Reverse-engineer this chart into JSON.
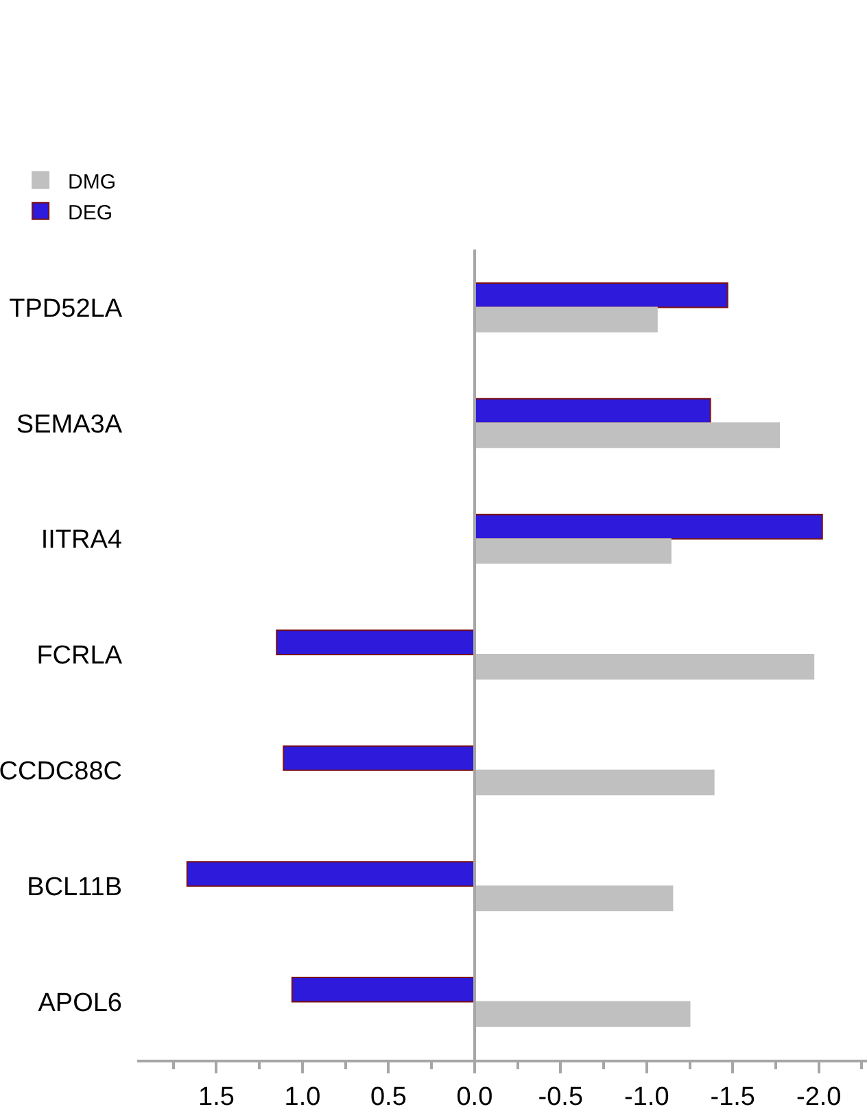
{
  "chart_data": {
    "type": "bar",
    "orientation": "horizontal",
    "categories": [
      "TPD52LA",
      "SEMA3A",
      "IITRA4",
      "FCRLA",
      "CCDC88C",
      "BCL11B",
      "APOL6"
    ],
    "series": [
      {
        "name": "DMG",
        "color": "#c0c0c0",
        "values": [
          -1.06,
          -1.77,
          -1.14,
          -1.97,
          -1.39,
          -1.15,
          -1.25
        ]
      },
      {
        "name": "DEG",
        "color": "#2e1adb",
        "values": [
          -1.47,
          -1.37,
          -2.02,
          1.15,
          1.11,
          1.67,
          1.06
        ]
      }
    ],
    "xlim": [
      1.96,
      -2.28
    ],
    "xticks": [
      {
        "value": 1.5,
        "label": "1.5"
      },
      {
        "value": 1,
        "label": "1.0"
      },
      {
        "value": 0.5,
        "label": "0.5"
      },
      {
        "value": 0,
        "label": "0.0"
      },
      {
        "value": -0.5,
        "label": "-0.5"
      },
      {
        "value": -1,
        "label": "-1.0"
      },
      {
        "value": -1.5,
        "label": "-1.5"
      },
      {
        "value": -2,
        "label": "-2.0"
      }
    ],
    "legend": "top left"
  }
}
